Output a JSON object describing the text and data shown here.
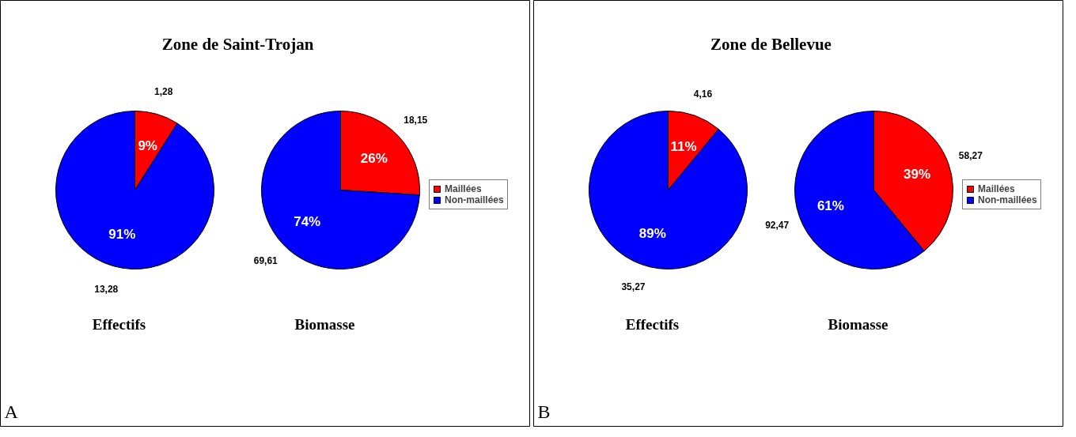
{
  "chart_data": [
    {
      "type": "pie",
      "title": "Zone de Saint-Trojan",
      "xlabel": "Effectifs",
      "categories": [
        "Maillées",
        "Non-maillées"
      ],
      "values": [
        9,
        91
      ],
      "colors": [
        "#ff0000",
        "#0000ff"
      ],
      "value_labels": [
        "9%",
        "91%"
      ],
      "annotations": [
        "1,28",
        "13,28",
        "A"
      ],
      "legend": "right"
    },
    {
      "type": "pie",
      "xlabel": "Biomasse",
      "categories": [
        null,
        null
      ],
      "values": [
        26,
        74
      ],
      "colors": [
        "#ff0000",
        "#0000ff"
      ],
      "value_labels": [
        "26%",
        "74%"
      ],
      "annotations": [
        "18,15",
        "69,61"
      ]
    },
    {
      "type": "pie",
      "title": "Zone de Bellevue",
      "xlabel": "Effectifs",
      "categories": [
        "Maillées",
        "Non-maillées"
      ],
      "values": [
        11,
        89
      ],
      "colors": [
        "#ff0000",
        "#0000ff"
      ],
      "value_labels": [
        "11%",
        "89%"
      ],
      "annotations": [
        "4,16",
        "35,27",
        "B"
      ],
      "legend": "right"
    },
    {
      "type": "pie",
      "xlabel": "Biomasse",
      "categories": [
        null,
        null
      ],
      "values": [
        39,
        61
      ],
      "colors": [
        "#ff0000",
        "#0000ff"
      ],
      "value_labels": [
        "39%",
        "61%"
      ],
      "annotations": [
        "58,27",
        "92,47"
      ]
    }
  ]
}
